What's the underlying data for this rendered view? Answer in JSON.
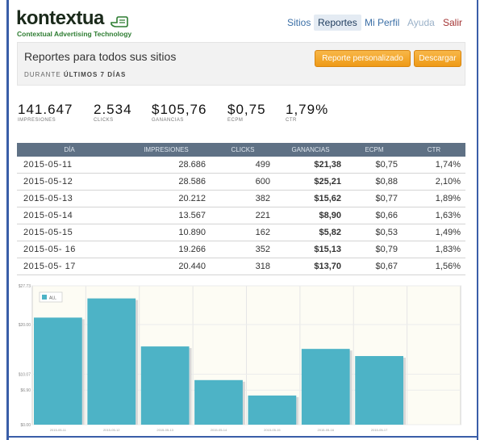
{
  "brand": {
    "name": "kontextua",
    "tagline": "Contextual Advertising Technology"
  },
  "nav": {
    "items": [
      {
        "label": "Sitios",
        "state": "normal"
      },
      {
        "label": "Reportes",
        "state": "active"
      },
      {
        "label": "Mi Perfil",
        "state": "normal"
      },
      {
        "label": "Ayuda",
        "state": "muted"
      },
      {
        "label": "Salir",
        "state": "exit"
      }
    ]
  },
  "header": {
    "title": "Reportes para todos sus sitios",
    "period_prefix": "DURANTE",
    "period_value": "ÚLTIMOS 7 DÍAS",
    "custom_report_label": "Reporte personalizado",
    "download_label": "Descargar"
  },
  "stats": [
    {
      "value": "141.647",
      "label": "IMPRESIONES"
    },
    {
      "value": "2.534",
      "label": "CLICKS"
    },
    {
      "value": "$105,76",
      "label": "GANANCIAS"
    },
    {
      "value": "$0,75",
      "label": "ECPM"
    },
    {
      "value": "1,79%",
      "label": "CTR"
    }
  ],
  "table": {
    "headers": [
      "DÍA",
      "IMPRESIONES",
      "CLICKS",
      "GANANCIAS",
      "ECPM",
      "CTR"
    ],
    "rows": [
      [
        "2015-05-11",
        "28.686",
        "499",
        "$21,38",
        "$0,75",
        "1,74%"
      ],
      [
        "2015-05-12",
        "28.586",
        "600",
        "$25,21",
        "$0,88",
        "2,10%"
      ],
      [
        "2015-05-13",
        "20.212",
        "382",
        "$15,62",
        "$0,77",
        "1,89%"
      ],
      [
        "2015-05-14",
        "13.567",
        "221",
        "$8,90",
        "$0,66",
        "1,63%"
      ],
      [
        "2015-05-15",
        "10.890",
        "162",
        "$5,82",
        "$0,53",
        "1,49%"
      ],
      [
        "2015-05- 16",
        "19.266",
        "352",
        "$15,13",
        "$0,79",
        "1,83%"
      ],
      [
        "2015-05- 17",
        "20.440",
        "318",
        "$13,70",
        "$0,67",
        "1,56%"
      ]
    ]
  },
  "chart_data": {
    "type": "bar",
    "categories": [
      "2015-05-11",
      "2015-05-12",
      "2015-05-13",
      "2015-05-14",
      "2015-05-15",
      "2015-05-16",
      "2015-05-17"
    ],
    "series": [
      {
        "name": "ALL",
        "values": [
          21.38,
          25.21,
          15.62,
          8.9,
          5.82,
          15.13,
          13.7
        ]
      }
    ],
    "yticks": [
      "$0.00",
      "$6.90",
      "$10.07",
      "$20.00",
      "$27.73"
    ],
    "ylim": [
      0,
      27.73
    ],
    "grid": true,
    "legend": "top-left",
    "bar_color": "#4db3c6"
  }
}
